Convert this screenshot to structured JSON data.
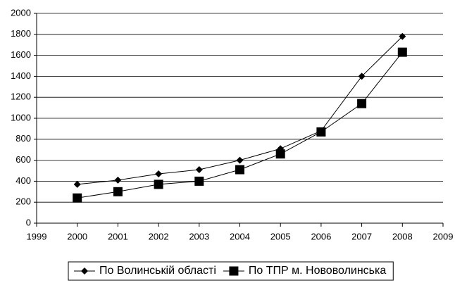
{
  "chart_data": {
    "type": "line",
    "x": [
      2000,
      2001,
      2002,
      2003,
      2004,
      2005,
      2006,
      2007,
      2008
    ],
    "series": [
      {
        "name": "По Волинській області",
        "color": "#000000",
        "marker": "diamond",
        "values": [
          370,
          410,
          470,
          510,
          600,
          710,
          880,
          1400,
          1780
        ]
      },
      {
        "name": "По ТПР м. Нововолинська",
        "color": "#000000",
        "marker": "square",
        "values": [
          240,
          300,
          370,
          400,
          510,
          660,
          870,
          1140,
          1630
        ]
      }
    ],
    "xlim": [
      1999,
      2009
    ],
    "xticks": [
      1999,
      2000,
      2001,
      2002,
      2003,
      2004,
      2005,
      2006,
      2007,
      2008,
      2009
    ],
    "ylim": [
      0,
      2000
    ],
    "yticks": [
      0,
      200,
      400,
      600,
      800,
      1000,
      1200,
      1400,
      1600,
      1800,
      2000
    ],
    "grid": true,
    "legend": "bottom"
  }
}
